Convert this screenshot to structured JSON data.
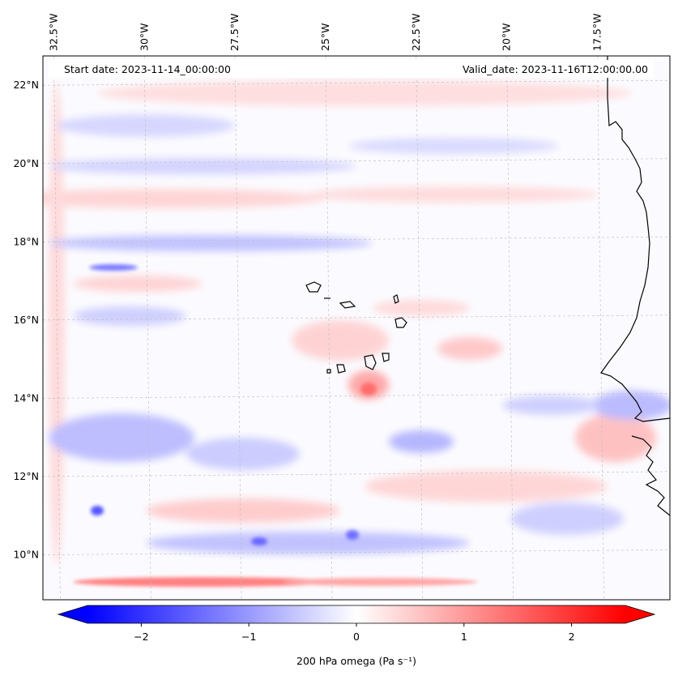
{
  "map": {
    "title_left": "Start date: 2023-11-14_00:00:00",
    "title_right": "Valid_date: 2023-11-16T12:00:00.00",
    "longitude_labels": [
      {
        "lon": -32.5,
        "text": "32.5°W"
      },
      {
        "lon": -30.0,
        "text": "30°W"
      },
      {
        "lon": -27.5,
        "text": "27.5°W"
      },
      {
        "lon": -25.0,
        "text": "25°W"
      },
      {
        "lon": -22.5,
        "text": "22.5°W"
      },
      {
        "lon": -20.0,
        "text": "20°W"
      },
      {
        "lon": -17.5,
        "text": "17.5°W"
      }
    ],
    "latitude_labels": [
      {
        "lat": 22,
        "text": "22°N"
      },
      {
        "lat": 20,
        "text": "20°N"
      },
      {
        "lat": 18,
        "text": "18°N"
      },
      {
        "lat": 16,
        "text": "16°N"
      },
      {
        "lat": 14,
        "text": "14°N"
      },
      {
        "lat": 12,
        "text": "12°N"
      },
      {
        "lat": 10,
        "text": "10°N"
      }
    ],
    "extent": {
      "lon_min": -32.8,
      "lon_max": -15.5,
      "lat_min": 8.85,
      "lat_max": 22.75
    }
  },
  "colorbar": {
    "label": "200 hPa omega (Pa s⁻¹)",
    "ticks": [
      {
        "value": -2,
        "text": "−2"
      },
      {
        "value": -1,
        "text": "−1"
      },
      {
        "value": 0,
        "text": "0"
      },
      {
        "value": 1,
        "text": "1"
      },
      {
        "value": 2,
        "text": "2"
      }
    ],
    "vmin": -2.5,
    "vmax": 2.5,
    "extend": "both",
    "low_color": "#0000ff",
    "mid_color": "#ffffff",
    "high_color": "#ff0000"
  }
}
